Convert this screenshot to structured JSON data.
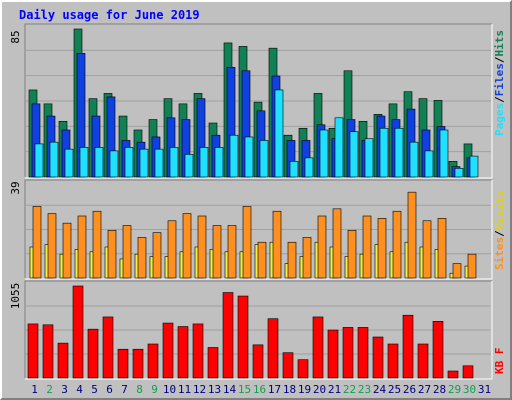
{
  "title": "Daily usage for June 2019",
  "colors": {
    "background": "#c0c0c0",
    "frame_light": "#ffffff",
    "frame_dark": "#808080",
    "hits": "#118055",
    "files": "#1040e0",
    "pages": "#20e0ff",
    "visits": "#f0f040",
    "sites": "#ff9020",
    "kbytes": "#ff0000",
    "title_text": "#0000ff",
    "weekend_label": "#10a050",
    "weekday_label": "#000080",
    "separator": "#000000"
  },
  "chart_data": [
    {
      "type": "bar",
      "panel": "hits-files-pages",
      "ymax_label": "85",
      "ymax": 85,
      "legend": [
        {
          "name": "Pages",
          "color_key": "pages"
        },
        {
          "name": "Files",
          "color_key": "files"
        },
        {
          "name": "Hits",
          "color_key": "hits"
        }
      ],
      "x": [
        "1",
        "2",
        "3",
        "4",
        "5",
        "6",
        "7",
        "8",
        "9",
        "10",
        "11",
        "12",
        "13",
        "14",
        "15",
        "16",
        "17",
        "18",
        "19",
        "20",
        "21",
        "22",
        "23",
        "24",
        "25",
        "26",
        "27",
        "28",
        "29",
        "30",
        "31"
      ],
      "weekend": [
        false,
        true,
        false,
        false,
        false,
        false,
        false,
        true,
        true,
        false,
        false,
        false,
        false,
        false,
        true,
        true,
        false,
        false,
        false,
        false,
        false,
        true,
        true,
        false,
        false,
        false,
        false,
        false,
        true,
        true,
        false
      ],
      "series": [
        {
          "name": "Hits",
          "color_key": "hits",
          "values": [
            50,
            42,
            32,
            85,
            45,
            48,
            35,
            27,
            33,
            45,
            42,
            48,
            31,
            77,
            75,
            43,
            74,
            24,
            28,
            48,
            28,
            61,
            32,
            36,
            42,
            49,
            45,
            44,
            9,
            19,
            0
          ]
        },
        {
          "name": "Files",
          "color_key": "files",
          "values": [
            42,
            35,
            27,
            71,
            35,
            46,
            21,
            20,
            23,
            34,
            33,
            45,
            24,
            63,
            61,
            38,
            58,
            21,
            21,
            30,
            22,
            33,
            21,
            35,
            33,
            39,
            27,
            29,
            6,
            11,
            0
          ]
        },
        {
          "name": "Pages",
          "color_key": "pages",
          "values": [
            19,
            20,
            16,
            17,
            17,
            15,
            17,
            16,
            16,
            17,
            13,
            17,
            17,
            24,
            23,
            21,
            50,
            9,
            11,
            27,
            34,
            26,
            22,
            28,
            28,
            20,
            15,
            27,
            5,
            12,
            0
          ]
        }
      ]
    },
    {
      "type": "bar",
      "panel": "visits-sites",
      "ymax_label": "39",
      "ymax": 39,
      "legend": [
        {
          "name": "Sites",
          "color_key": "sites"
        },
        {
          "name": "Visits",
          "color_key": "visits"
        }
      ],
      "x": [
        "1",
        "2",
        "3",
        "4",
        "5",
        "6",
        "7",
        "8",
        "9",
        "10",
        "11",
        "12",
        "13",
        "14",
        "15",
        "16",
        "17",
        "18",
        "19",
        "20",
        "21",
        "22",
        "23",
        "24",
        "25",
        "26",
        "27",
        "28",
        "29",
        "30",
        "31"
      ],
      "series": [
        {
          "name": "Visits",
          "color_key": "visits",
          "values": [
            13,
            14,
            10,
            12,
            11,
            13,
            8,
            10,
            9,
            9,
            11,
            13,
            12,
            11,
            11,
            14,
            15,
            6,
            9,
            15,
            13,
            9,
            10,
            14,
            11,
            15,
            13,
            12,
            2,
            5,
            0
          ]
        },
        {
          "name": "Sites",
          "color_key": "sites",
          "values": [
            30,
            27,
            23,
            26,
            28,
            20,
            22,
            17,
            19,
            24,
            27,
            26,
            22,
            22,
            30,
            15,
            28,
            15,
            17,
            26,
            29,
            20,
            26,
            25,
            28,
            36,
            24,
            25,
            6,
            10,
            0
          ]
        }
      ]
    },
    {
      "type": "bar",
      "panel": "kbytes",
      "ymax_label": "1055",
      "ymax": 1055,
      "legend": [
        {
          "name": "KB F",
          "color_key": "kbytes"
        }
      ],
      "x": [
        "1",
        "2",
        "3",
        "4",
        "5",
        "6",
        "7",
        "8",
        "9",
        "10",
        "11",
        "12",
        "13",
        "14",
        "15",
        "16",
        "17",
        "18",
        "19",
        "20",
        "21",
        "22",
        "23",
        "24",
        "25",
        "26",
        "27",
        "28",
        "29",
        "30",
        "31"
      ],
      "series": [
        {
          "name": "KB F",
          "color_key": "kbytes",
          "values": [
            620,
            610,
            400,
            1055,
            560,
            700,
            330,
            330,
            390,
            630,
            590,
            620,
            350,
            980,
            940,
            380,
            680,
            290,
            210,
            700,
            550,
            580,
            580,
            470,
            390,
            720,
            390,
            650,
            80,
            140,
            0
          ]
        }
      ]
    }
  ]
}
